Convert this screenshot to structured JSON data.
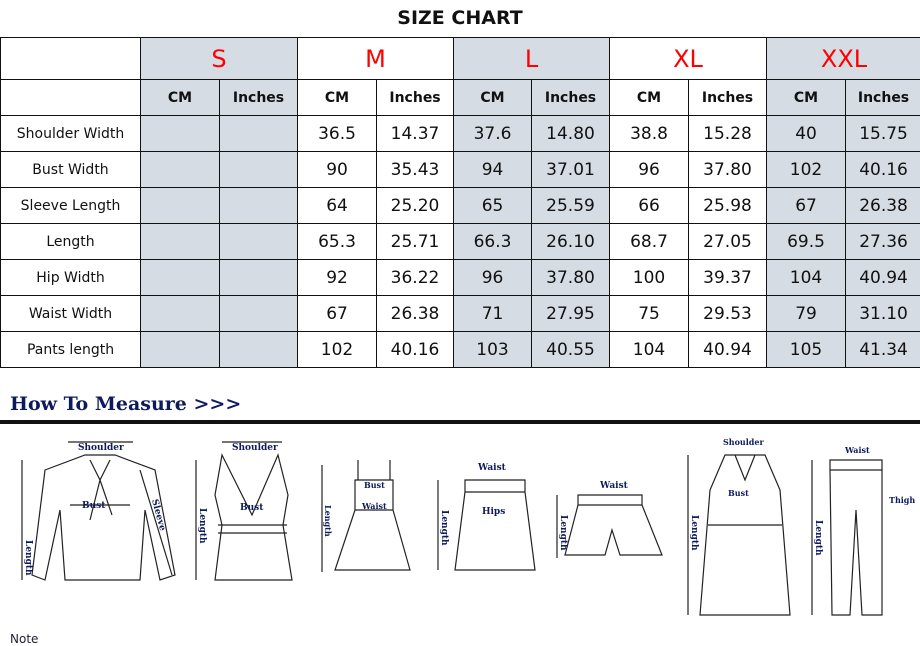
{
  "title": "SIZE CHART",
  "sizes": [
    "S",
    "M",
    "L",
    "XL",
    "XXL"
  ],
  "units": {
    "cm": "CM",
    "in": "Inches"
  },
  "rows": [
    {
      "label": "Shoulder Width",
      "values": [
        "",
        "",
        "36.5",
        "14.37",
        "37.6",
        "14.80",
        "38.8",
        "15.28",
        "40",
        "15.75"
      ]
    },
    {
      "label": "Bust Width",
      "values": [
        "",
        "",
        "90",
        "35.43",
        "94",
        "37.01",
        "96",
        "37.80",
        "102",
        "40.16"
      ]
    },
    {
      "label": "Sleeve Length",
      "values": [
        "",
        "",
        "64",
        "25.20",
        "65",
        "25.59",
        "66",
        "25.98",
        "67",
        "26.38"
      ]
    },
    {
      "label": "Length",
      "values": [
        "",
        "",
        "65.3",
        "25.71",
        "66.3",
        "26.10",
        "68.7",
        "27.05",
        "69.5",
        "27.36"
      ]
    },
    {
      "label": "Hip Width",
      "values": [
        "",
        "",
        "92",
        "36.22",
        "96",
        "37.80",
        "100",
        "39.37",
        "104",
        "40.94"
      ]
    },
    {
      "label": "Waist Width",
      "values": [
        "",
        "",
        "67",
        "26.38",
        "71",
        "27.95",
        "75",
        "29.53",
        "79",
        "31.10"
      ]
    },
    {
      "label": "Pants length",
      "values": [
        "",
        "",
        "102",
        "40.16",
        "103",
        "40.55",
        "104",
        "40.94",
        "105",
        "41.34"
      ]
    }
  ],
  "how_to_measure": "How To Measure >>>",
  "measure_labels": {
    "shoulder": "Shoulder",
    "bust": "Bust",
    "sleeve": "Sleeve",
    "length": "Length",
    "waist": "Waist",
    "hips": "Hips",
    "thigh": "Thigh"
  },
  "note": "Note",
  "colors": {
    "size_label": "#ff0000",
    "shaded_column": "#d6dce4",
    "heading": "#0d1a5c"
  }
}
